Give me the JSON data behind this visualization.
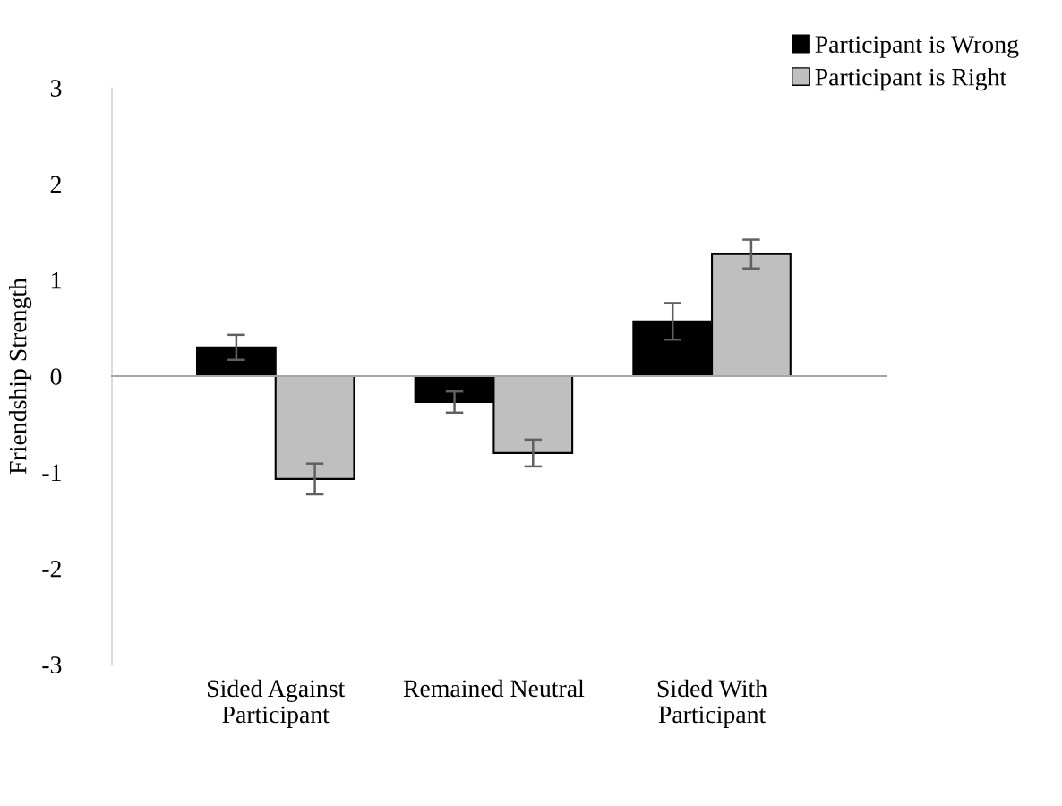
{
  "chart_data": {
    "type": "bar",
    "ylabel": "Friendship Strength",
    "categories": [
      "Sided Against\nParticipant",
      "Remained Neutral",
      "Sided With\nParticipant"
    ],
    "series": [
      {
        "name": "Participant is Wrong",
        "color": "#000000",
        "values": [
          0.3,
          -0.27,
          0.57
        ],
        "errors": [
          0.13,
          0.11,
          0.19
        ]
      },
      {
        "name": "Participant is Right",
        "color": "#bfbfbf",
        "values": [
          -1.07,
          -0.8,
          1.27
        ],
        "errors": [
          0.16,
          0.14,
          0.15
        ]
      }
    ],
    "ylim": [
      -3,
      3
    ],
    "yticks": [
      -3,
      -2,
      -1,
      0,
      1,
      2,
      3
    ],
    "legend": "top right"
  }
}
